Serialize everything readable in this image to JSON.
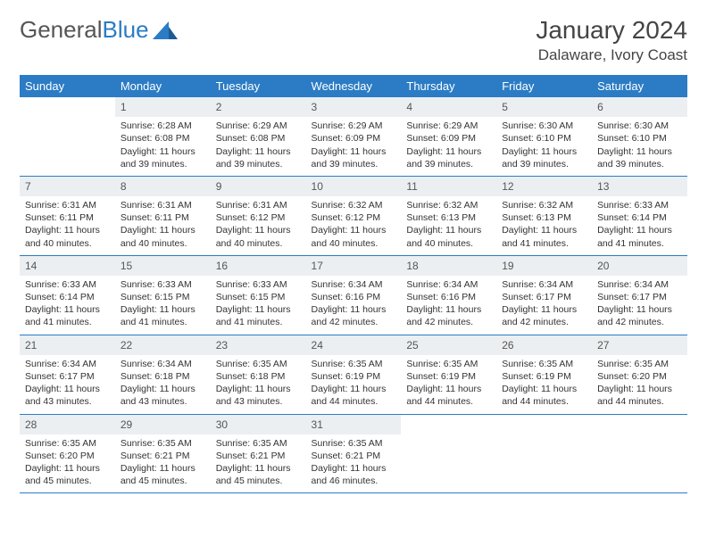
{
  "logo": {
    "word1": "General",
    "word2": "Blue"
  },
  "title": "January 2024",
  "location": "Dalaware, Ivory Coast",
  "weekdays": [
    "Sunday",
    "Monday",
    "Tuesday",
    "Wednesday",
    "Thursday",
    "Friday",
    "Saturday"
  ],
  "colors": {
    "header_bg": "#2b7cc4",
    "header_text": "#ffffff",
    "daynum_bg": "#eceff1",
    "border": "#2b7cc4",
    "text": "#333333",
    "logo_gray": "#555555",
    "logo_blue": "#2b7cc4"
  },
  "layout": {
    "cols": 7,
    "rows": 5,
    "first_day_col": 1
  },
  "days": [
    {
      "n": "1",
      "sr": "6:28 AM",
      "ss": "6:08 PM",
      "dl": "11 hours and 39 minutes."
    },
    {
      "n": "2",
      "sr": "6:29 AM",
      "ss": "6:08 PM",
      "dl": "11 hours and 39 minutes."
    },
    {
      "n": "3",
      "sr": "6:29 AM",
      "ss": "6:09 PM",
      "dl": "11 hours and 39 minutes."
    },
    {
      "n": "4",
      "sr": "6:29 AM",
      "ss": "6:09 PM",
      "dl": "11 hours and 39 minutes."
    },
    {
      "n": "5",
      "sr": "6:30 AM",
      "ss": "6:10 PM",
      "dl": "11 hours and 39 minutes."
    },
    {
      "n": "6",
      "sr": "6:30 AM",
      "ss": "6:10 PM",
      "dl": "11 hours and 39 minutes."
    },
    {
      "n": "7",
      "sr": "6:31 AM",
      "ss": "6:11 PM",
      "dl": "11 hours and 40 minutes."
    },
    {
      "n": "8",
      "sr": "6:31 AM",
      "ss": "6:11 PM",
      "dl": "11 hours and 40 minutes."
    },
    {
      "n": "9",
      "sr": "6:31 AM",
      "ss": "6:12 PM",
      "dl": "11 hours and 40 minutes."
    },
    {
      "n": "10",
      "sr": "6:32 AM",
      "ss": "6:12 PM",
      "dl": "11 hours and 40 minutes."
    },
    {
      "n": "11",
      "sr": "6:32 AM",
      "ss": "6:13 PM",
      "dl": "11 hours and 40 minutes."
    },
    {
      "n": "12",
      "sr": "6:32 AM",
      "ss": "6:13 PM",
      "dl": "11 hours and 41 minutes."
    },
    {
      "n": "13",
      "sr": "6:33 AM",
      "ss": "6:14 PM",
      "dl": "11 hours and 41 minutes."
    },
    {
      "n": "14",
      "sr": "6:33 AM",
      "ss": "6:14 PM",
      "dl": "11 hours and 41 minutes."
    },
    {
      "n": "15",
      "sr": "6:33 AM",
      "ss": "6:15 PM",
      "dl": "11 hours and 41 minutes."
    },
    {
      "n": "16",
      "sr": "6:33 AM",
      "ss": "6:15 PM",
      "dl": "11 hours and 41 minutes."
    },
    {
      "n": "17",
      "sr": "6:34 AM",
      "ss": "6:16 PM",
      "dl": "11 hours and 42 minutes."
    },
    {
      "n": "18",
      "sr": "6:34 AM",
      "ss": "6:16 PM",
      "dl": "11 hours and 42 minutes."
    },
    {
      "n": "19",
      "sr": "6:34 AM",
      "ss": "6:17 PM",
      "dl": "11 hours and 42 minutes."
    },
    {
      "n": "20",
      "sr": "6:34 AM",
      "ss": "6:17 PM",
      "dl": "11 hours and 42 minutes."
    },
    {
      "n": "21",
      "sr": "6:34 AM",
      "ss": "6:17 PM",
      "dl": "11 hours and 43 minutes."
    },
    {
      "n": "22",
      "sr": "6:34 AM",
      "ss": "6:18 PM",
      "dl": "11 hours and 43 minutes."
    },
    {
      "n": "23",
      "sr": "6:35 AM",
      "ss": "6:18 PM",
      "dl": "11 hours and 43 minutes."
    },
    {
      "n": "24",
      "sr": "6:35 AM",
      "ss": "6:19 PM",
      "dl": "11 hours and 44 minutes."
    },
    {
      "n": "25",
      "sr": "6:35 AM",
      "ss": "6:19 PM",
      "dl": "11 hours and 44 minutes."
    },
    {
      "n": "26",
      "sr": "6:35 AM",
      "ss": "6:19 PM",
      "dl": "11 hours and 44 minutes."
    },
    {
      "n": "27",
      "sr": "6:35 AM",
      "ss": "6:20 PM",
      "dl": "11 hours and 44 minutes."
    },
    {
      "n": "28",
      "sr": "6:35 AM",
      "ss": "6:20 PM",
      "dl": "11 hours and 45 minutes."
    },
    {
      "n": "29",
      "sr": "6:35 AM",
      "ss": "6:21 PM",
      "dl": "11 hours and 45 minutes."
    },
    {
      "n": "30",
      "sr": "6:35 AM",
      "ss": "6:21 PM",
      "dl": "11 hours and 45 minutes."
    },
    {
      "n": "31",
      "sr": "6:35 AM",
      "ss": "6:21 PM",
      "dl": "11 hours and 46 minutes."
    }
  ],
  "labels": {
    "sunrise": "Sunrise:",
    "sunset": "Sunset:",
    "daylight": "Daylight:"
  }
}
